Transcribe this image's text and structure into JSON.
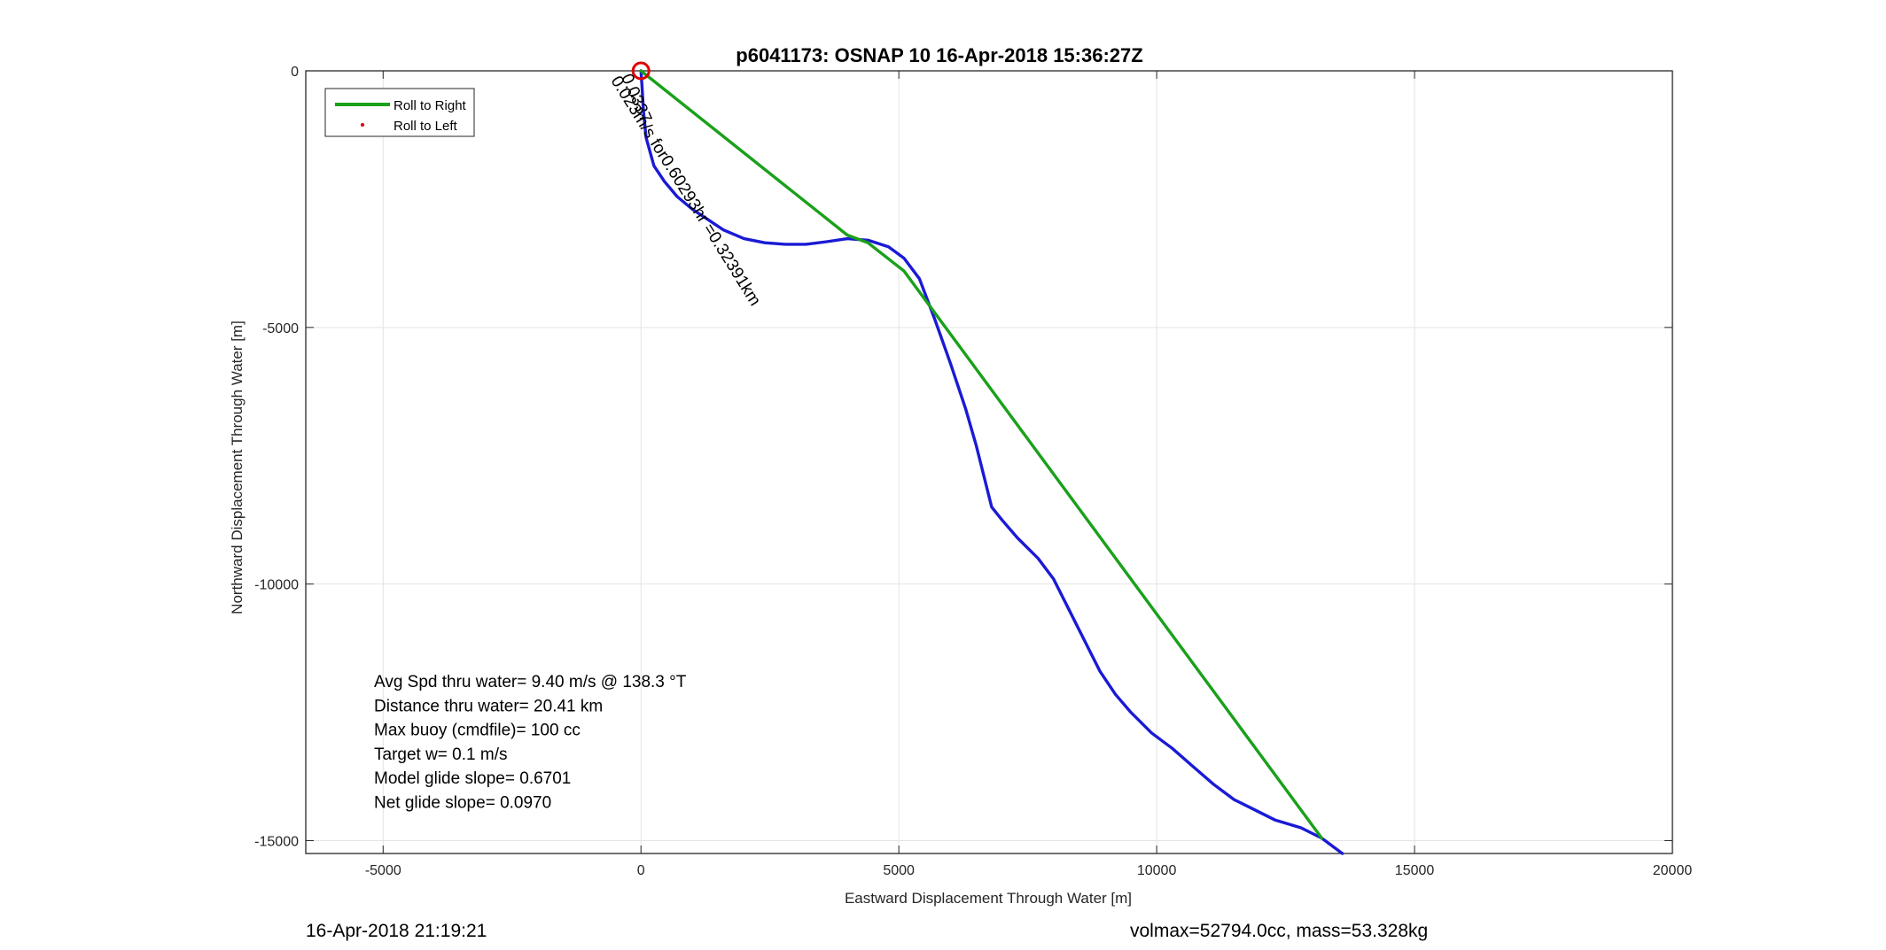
{
  "chart_data": {
    "type": "line",
    "title": "p6041173: OSNAP 10 16-Apr-2018 15:36:27Z",
    "xlabel": "Eastward Displacement Through Water [m]",
    "ylabel": "Northward Displacement Through Water [m]",
    "xlim": [
      -6500,
      20000
    ],
    "ylim": [
      -15250,
      0
    ],
    "xticks": [
      -5000,
      0,
      5000,
      10000,
      15000,
      20000
    ],
    "xtick_labels": [
      "-5000",
      "0",
      "5000",
      "10000",
      "15000",
      "20000"
    ],
    "yticks": [
      0,
      -5000,
      -10000,
      -15000
    ],
    "ytick_labels": [
      "0",
      "-5000",
      "-10000",
      "-15000"
    ],
    "grid": true,
    "legend_position": "top-left",
    "legend": [
      {
        "label": "Roll to Right",
        "color": "#1aa01a",
        "style": "line"
      },
      {
        "label": "Roll to Left",
        "color": "#e00000",
        "style": "dot"
      }
    ],
    "series": [
      {
        "color": "#1a1ad6",
        "x": [
          0,
          20,
          50,
          100,
          250,
          450,
          700,
          1000,
          1300,
          1600,
          2000,
          2400,
          2800,
          3200,
          3600,
          4000,
          4400,
          4800,
          5100,
          5400,
          5700,
          6000,
          6300,
          6500,
          6700,
          6800,
          7000,
          7300,
          7700,
          8000,
          8300,
          8600,
          8900,
          9200,
          9500,
          9900,
          10300,
          10700,
          11100,
          11500,
          11900,
          12300,
          12800,
          13200,
          13600
        ],
        "y": [
          0,
          -300,
          -800,
          -1300,
          -1850,
          -2150,
          -2450,
          -2700,
          -2900,
          -3100,
          -3270,
          -3350,
          -3380,
          -3380,
          -3330,
          -3270,
          -3300,
          -3430,
          -3650,
          -4050,
          -4850,
          -5700,
          -6600,
          -7300,
          -8100,
          -8500,
          -8750,
          -9100,
          -9500,
          -9900,
          -10500,
          -11100,
          -11700,
          -12150,
          -12500,
          -12900,
          -13200,
          -13550,
          -13900,
          -14200,
          -14400,
          -14600,
          -14750,
          -14950,
          -15250
        ]
      },
      {
        "color": "#1aa01a",
        "x": [
          0,
          4000,
          4400,
          5100,
          13200
        ],
        "y": [
          0,
          -3200,
          -3350,
          -3900,
          -14950
        ]
      }
    ],
    "start_marker": {
      "x": 0,
      "y": 0,
      "color": "#e00000"
    },
    "rotated_label": {
      "text": "0.023m/s for0.60293hr =0.32391km",
      "x": 200,
      "y": -50
    },
    "rotated_label_overlap": "0.0337",
    "stats": [
      "Avg Spd thru water=  9.40 m/s @ 138.3 °T",
      "Distance thru water= 20.41 km",
      "Max buoy (cmdfile)= 100 cc",
      "Target w= 0.1 m/s",
      "Model glide slope= 0.6701",
      "Net glide slope= 0.0970"
    ]
  },
  "footer": {
    "left": "16-Apr-2018 21:19:21",
    "right": "volmax=52794.0cc, mass=53.328kg"
  }
}
